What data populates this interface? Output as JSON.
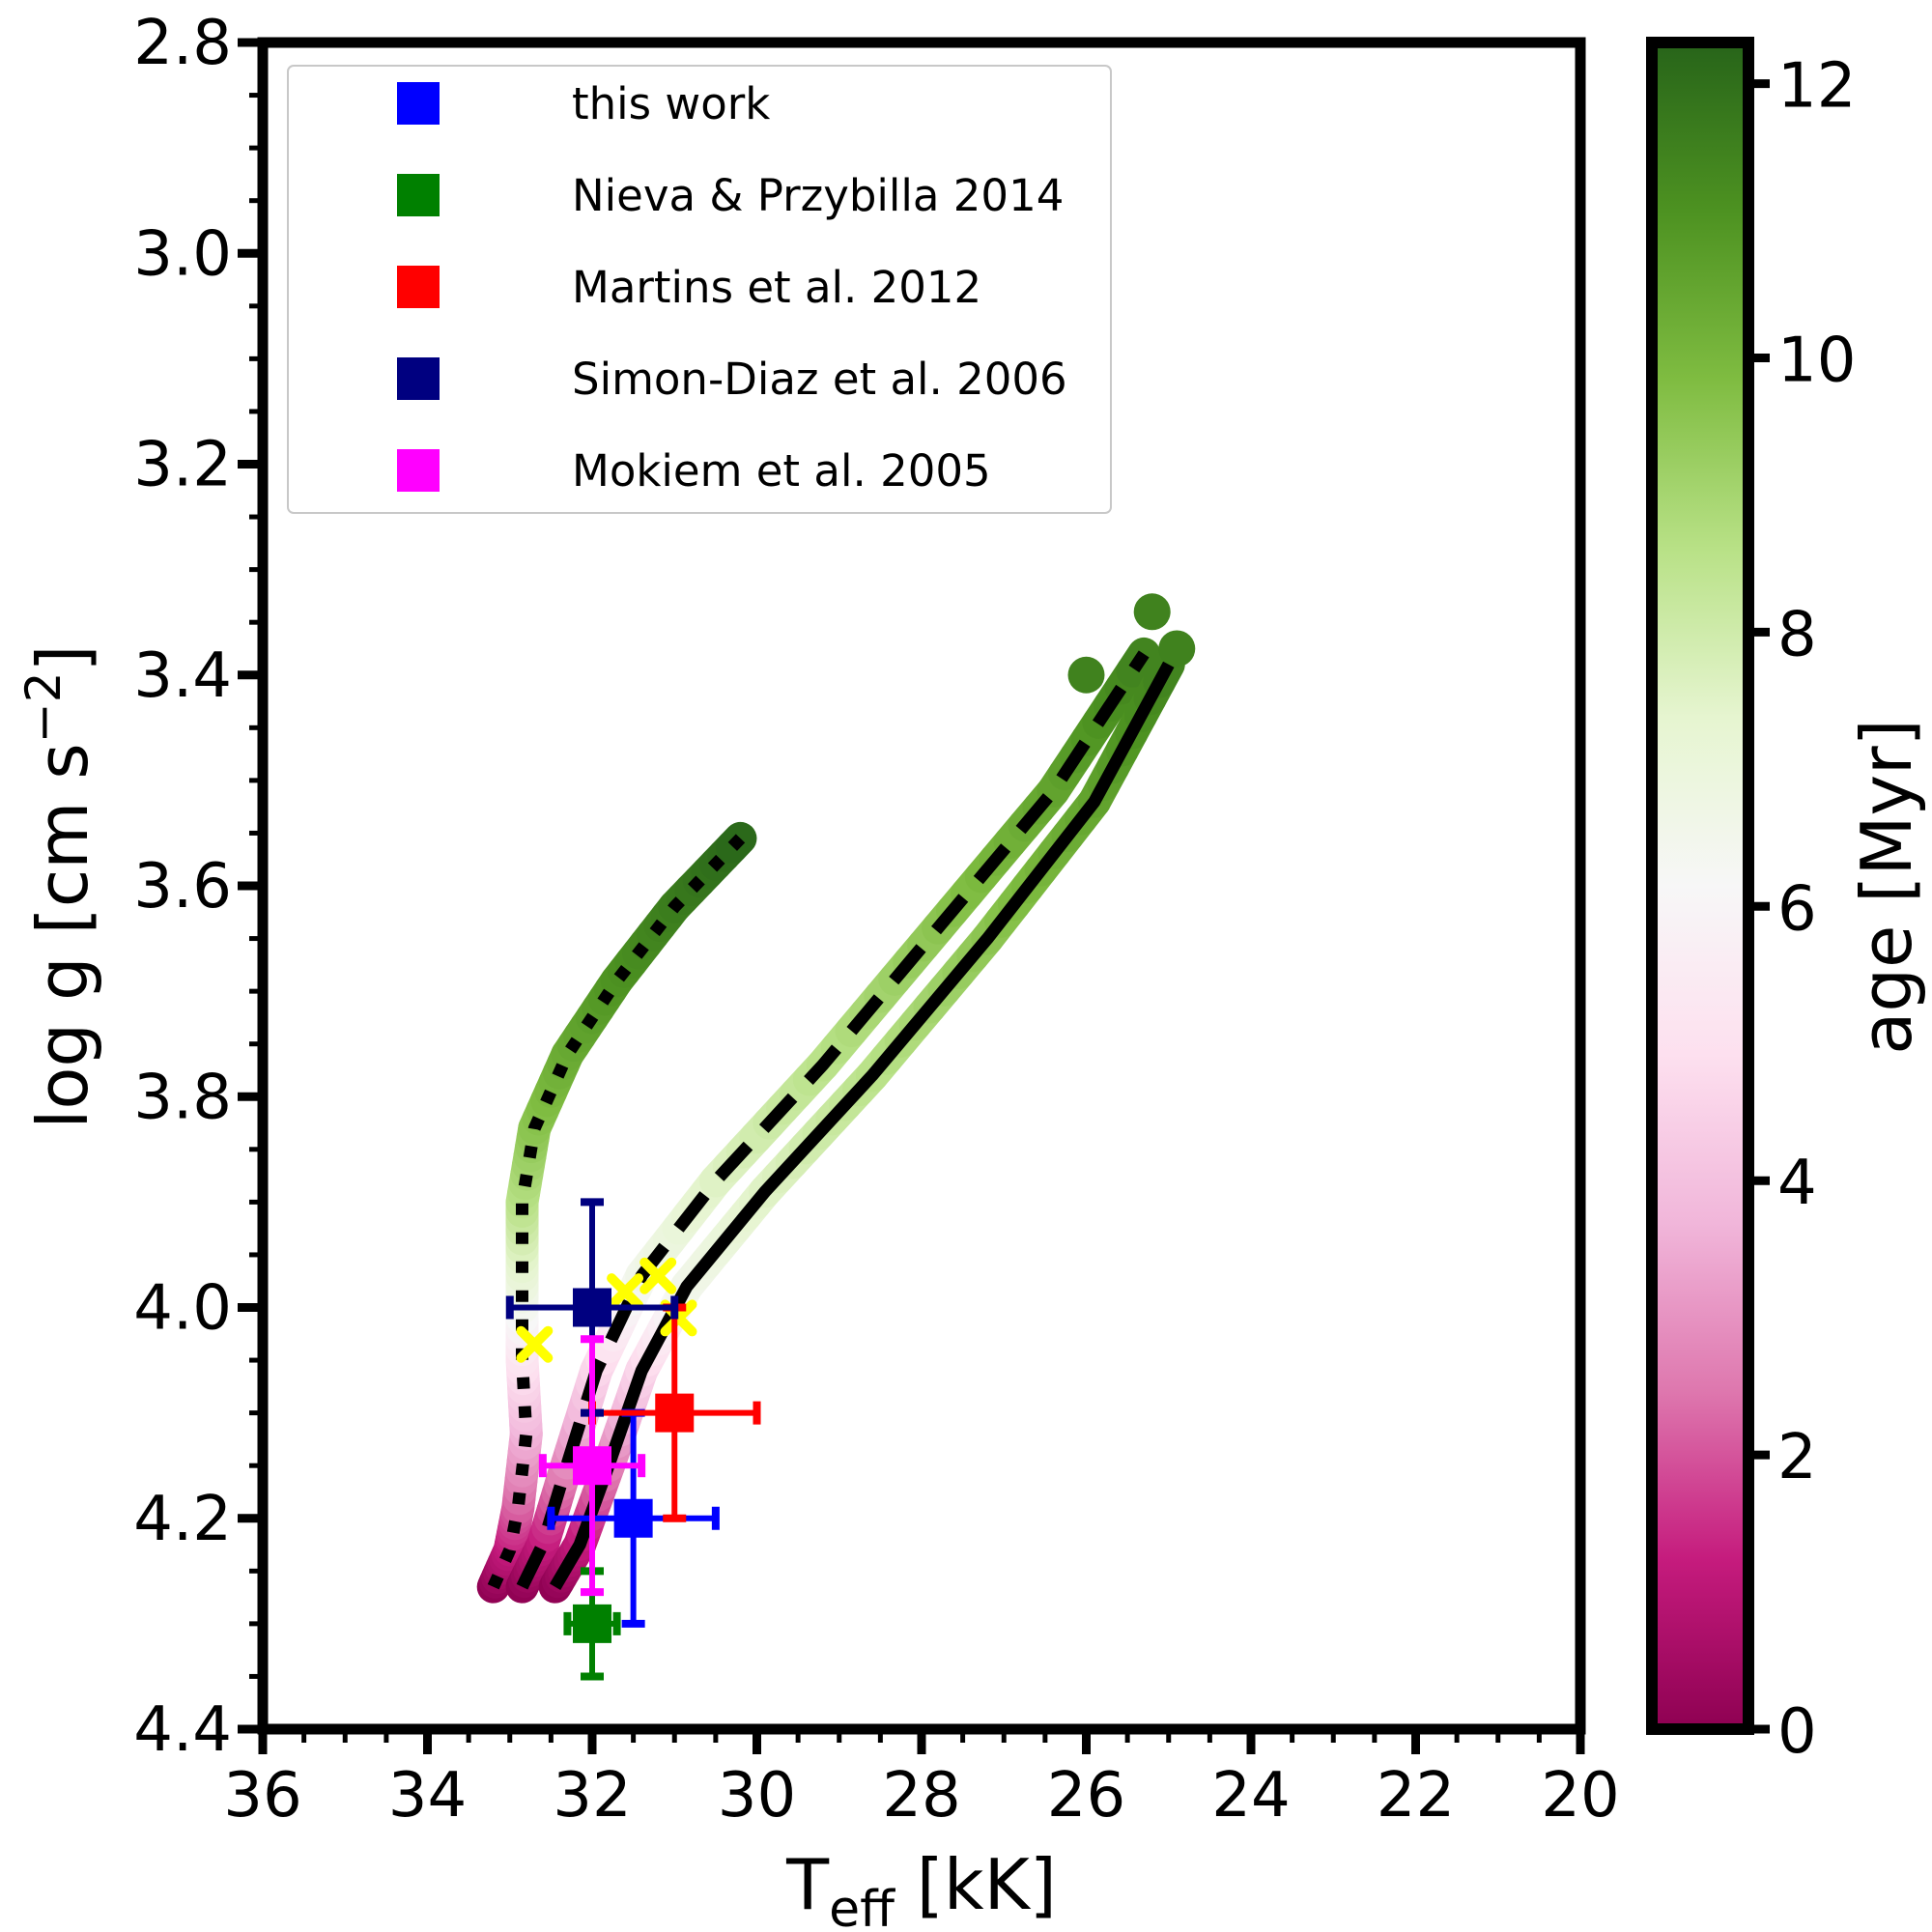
{
  "colors": {
    "this_work": "#0000ff",
    "nieva": "#008000",
    "martins": "#ff0000",
    "simon_diaz": "#000080",
    "mokiem": "#ff00ff",
    "zams_marker": "#ffff00",
    "colormap": [
      "#8e0152",
      "#c51b7d",
      "#de77ae",
      "#f1b6da",
      "#fde0ef",
      "#f7f7f7",
      "#e6f5d0",
      "#b8e186",
      "#7fbc41",
      "#4d9221",
      "#276419"
    ]
  },
  "chart_data": {
    "type": "scatter",
    "xlabel": "T",
    "xlabel_sub": "eff",
    "xlabel_unit": " [kK]",
    "ylabel": "log g [cm s",
    "ylabel_sup": "−2",
    "ylabel_end": "]",
    "xlim": [
      36,
      20
    ],
    "ylim": [
      4.4,
      2.8
    ],
    "x_inverted": true,
    "y_inverted": true,
    "xticks": [
      36,
      34,
      32,
      30,
      28,
      26,
      24,
      22,
      20
    ],
    "xtick_labels": [
      "36",
      "34",
      "32",
      "30",
      "28",
      "26",
      "24",
      "22",
      "20"
    ],
    "yticks": [
      2.8,
      3.0,
      3.2,
      3.4,
      3.6,
      3.8,
      4.0,
      4.2,
      4.4
    ],
    "ytick_labels": [
      "2.8",
      "3.0",
      "3.2",
      "3.4",
      "3.6",
      "3.8",
      "4.0",
      "4.2",
      "4.4"
    ],
    "legend_position": "top-left",
    "colorbar": {
      "label": "age [Myr]",
      "range": [
        0,
        12.3
      ],
      "ticks": [
        0,
        2,
        4,
        6,
        8,
        10,
        12
      ],
      "tick_labels": [
        "0",
        "2",
        "4",
        "6",
        "8",
        "10",
        "12"
      ]
    },
    "series": [
      {
        "name": "this work",
        "color": "#0000ff",
        "points": [
          {
            "x": 31.5,
            "y": 4.2,
            "xerr": 1.0,
            "yerr": 0.1
          }
        ]
      },
      {
        "name": "Nieva & Przybilla 2014",
        "color": "#008000",
        "points": [
          {
            "x": 32.0,
            "y": 4.3,
            "xerr": 0.3,
            "yerr": 0.05
          }
        ]
      },
      {
        "name": "Martins et al. 2012",
        "color": "#ff0000",
        "points": [
          {
            "x": 31.0,
            "y": 4.1,
            "xerr": 1.0,
            "yerr": 0.1
          }
        ]
      },
      {
        "name": "Simon-Diaz et al. 2006",
        "color": "#000080",
        "points": [
          {
            "x": 32.0,
            "y": 4.0,
            "xerr": 1.0,
            "yerr": 0.1
          }
        ]
      },
      {
        "name": "Mokiem et al. 2005",
        "color": "#ff00ff",
        "points": [
          {
            "x": 32.0,
            "y": 4.15,
            "xerr": 0.6,
            "yerr": 0.12
          }
        ]
      }
    ],
    "zams_markers": [
      {
        "x": 32.7,
        "y": 4.035
      },
      {
        "x": 31.6,
        "y": 3.985
      },
      {
        "x": 31.2,
        "y": 3.97
      },
      {
        "x": 30.95,
        "y": 4.01
      }
    ],
    "tracks": [
      {
        "style": "dotted",
        "points": [
          {
            "x": 33.2,
            "y": 4.265,
            "age": 0.0
          },
          {
            "x": 33.0,
            "y": 4.23,
            "age": 1.0
          },
          {
            "x": 32.9,
            "y": 4.19,
            "age": 2.0
          },
          {
            "x": 32.8,
            "y": 4.12,
            "age": 3.5
          },
          {
            "x": 32.85,
            "y": 4.05,
            "age": 5.0
          },
          {
            "x": 32.85,
            "y": 3.97,
            "age": 7.0
          },
          {
            "x": 32.85,
            "y": 3.9,
            "age": 8.5
          },
          {
            "x": 32.7,
            "y": 3.83,
            "age": 9.5
          },
          {
            "x": 32.3,
            "y": 3.76,
            "age": 10.3
          },
          {
            "x": 31.7,
            "y": 3.69,
            "age": 11.0
          },
          {
            "x": 31.0,
            "y": 3.62,
            "age": 11.6
          },
          {
            "x": 30.2,
            "y": 3.555,
            "age": 12.2
          }
        ]
      },
      {
        "style": "dashed",
        "points": [
          {
            "x": 32.85,
            "y": 4.265,
            "age": 0.0
          },
          {
            "x": 32.6,
            "y": 4.225,
            "age": 1.0
          },
          {
            "x": 32.35,
            "y": 4.16,
            "age": 2.5
          },
          {
            "x": 31.95,
            "y": 4.06,
            "age": 4.5
          },
          {
            "x": 31.4,
            "y": 3.97,
            "age": 6.5
          },
          {
            "x": 30.5,
            "y": 3.88,
            "age": 7.5
          },
          {
            "x": 29.2,
            "y": 3.77,
            "age": 8.5
          },
          {
            "x": 27.8,
            "y": 3.64,
            "age": 9.5
          },
          {
            "x": 26.4,
            "y": 3.51,
            "age": 10.5
          },
          {
            "x": 25.3,
            "y": 3.38,
            "age": 11.5
          }
        ]
      },
      {
        "style": "solid",
        "points": [
          {
            "x": 32.45,
            "y": 4.265,
            "age": 0.0
          },
          {
            "x": 32.15,
            "y": 4.225,
            "age": 1.0
          },
          {
            "x": 31.8,
            "y": 4.15,
            "age": 2.5
          },
          {
            "x": 31.4,
            "y": 4.06,
            "age": 4.5
          },
          {
            "x": 30.85,
            "y": 3.98,
            "age": 6.5
          },
          {
            "x": 29.9,
            "y": 3.89,
            "age": 7.5
          },
          {
            "x": 28.6,
            "y": 3.78,
            "age": 8.5
          },
          {
            "x": 27.2,
            "y": 3.65,
            "age": 9.5
          },
          {
            "x": 25.9,
            "y": 3.52,
            "age": 10.5
          },
          {
            "x": 25.0,
            "y": 3.39,
            "age": 11.5
          }
        ]
      }
    ],
    "track_end_blobs": [
      {
        "x": 26.0,
        "y": 3.4
      },
      {
        "x": 25.2,
        "y": 3.34
      },
      {
        "x": 24.9,
        "y": 3.375
      }
    ]
  }
}
